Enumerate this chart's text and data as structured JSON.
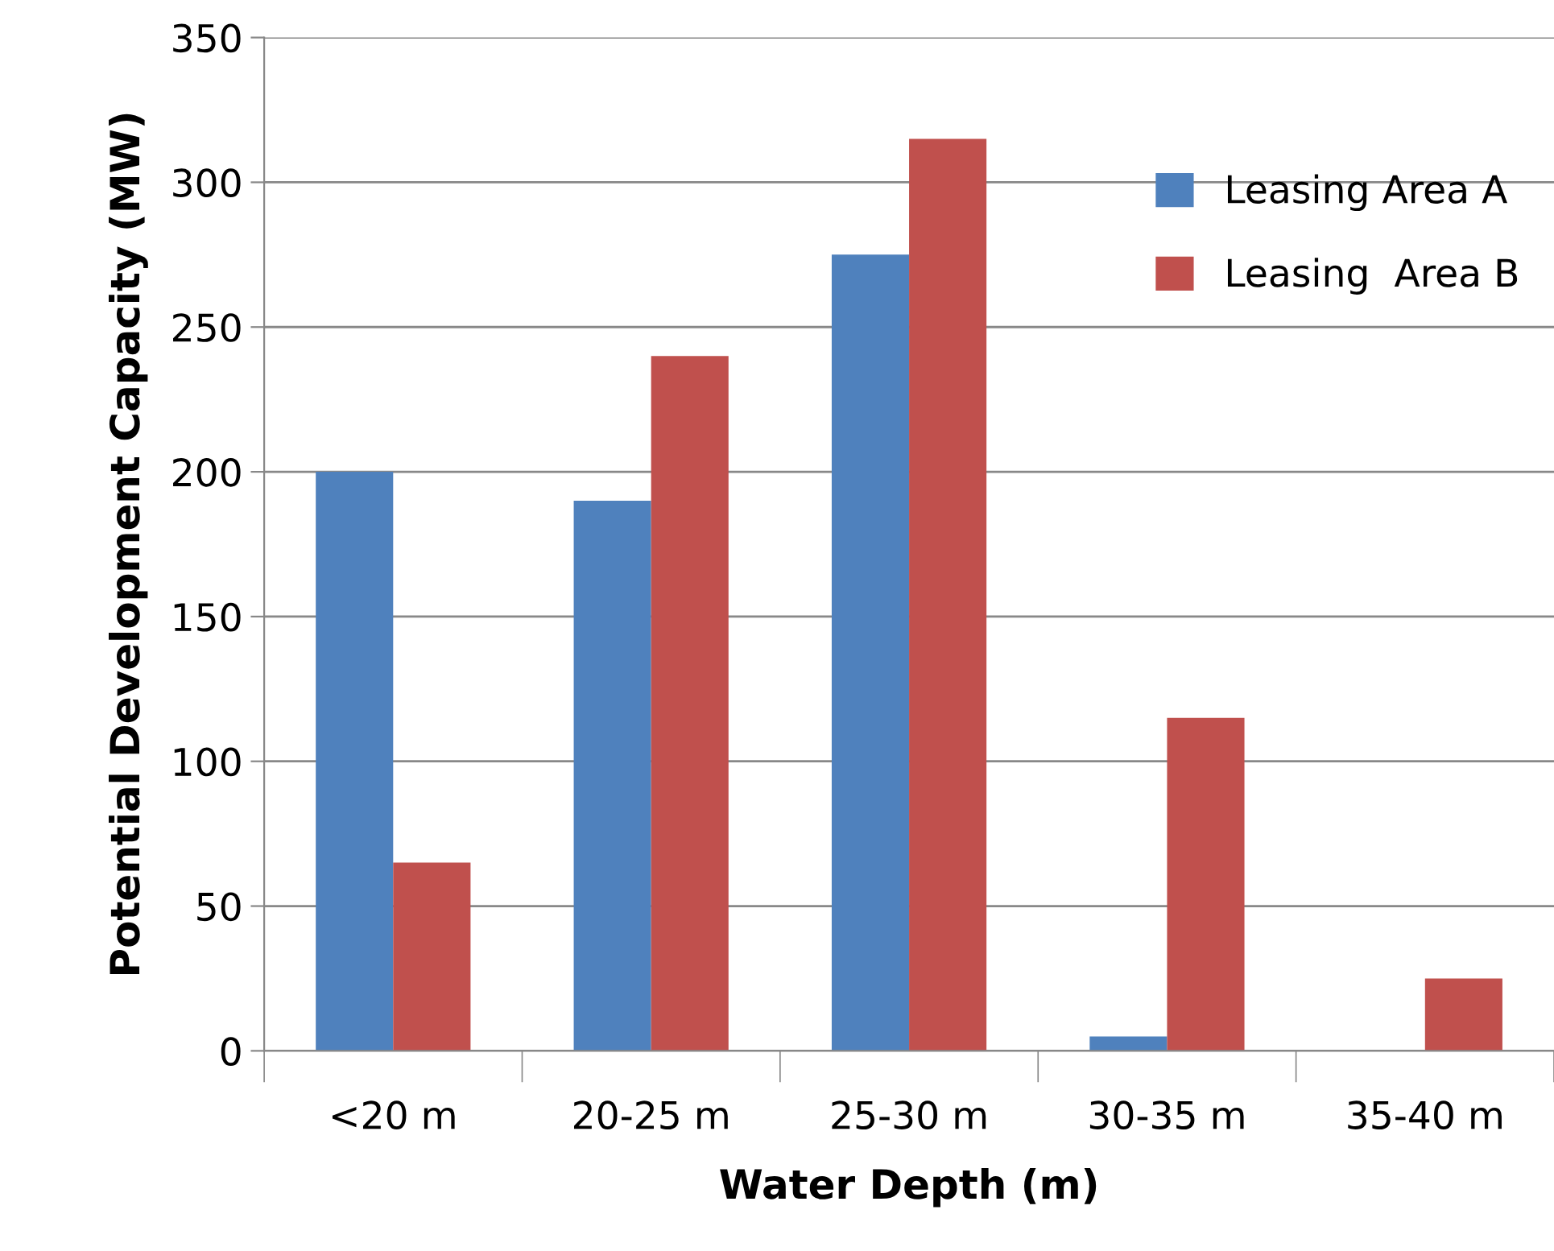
{
  "chart_data": {
    "type": "bar",
    "xlabel": "Water Depth (m)",
    "ylabel": "Potential Development Capacity (MW)",
    "categories": [
      "<20 m",
      "20-25 m",
      "25-30 m",
      "30-35 m",
      "35-40 m"
    ],
    "series": [
      {
        "name": "Leasing Area A",
        "color": "#4f81bd",
        "values": [
          200,
          190,
          275,
          5,
          0
        ]
      },
      {
        "name": "Leasing  Area B",
        "color": "#c0504d",
        "values": [
          65,
          240,
          315,
          115,
          25
        ]
      }
    ],
    "ylim": [
      0,
      350
    ],
    "yticks": [
      0,
      50,
      100,
      150,
      200,
      250,
      300,
      350
    ],
    "grid": "y",
    "legend": "top right"
  }
}
